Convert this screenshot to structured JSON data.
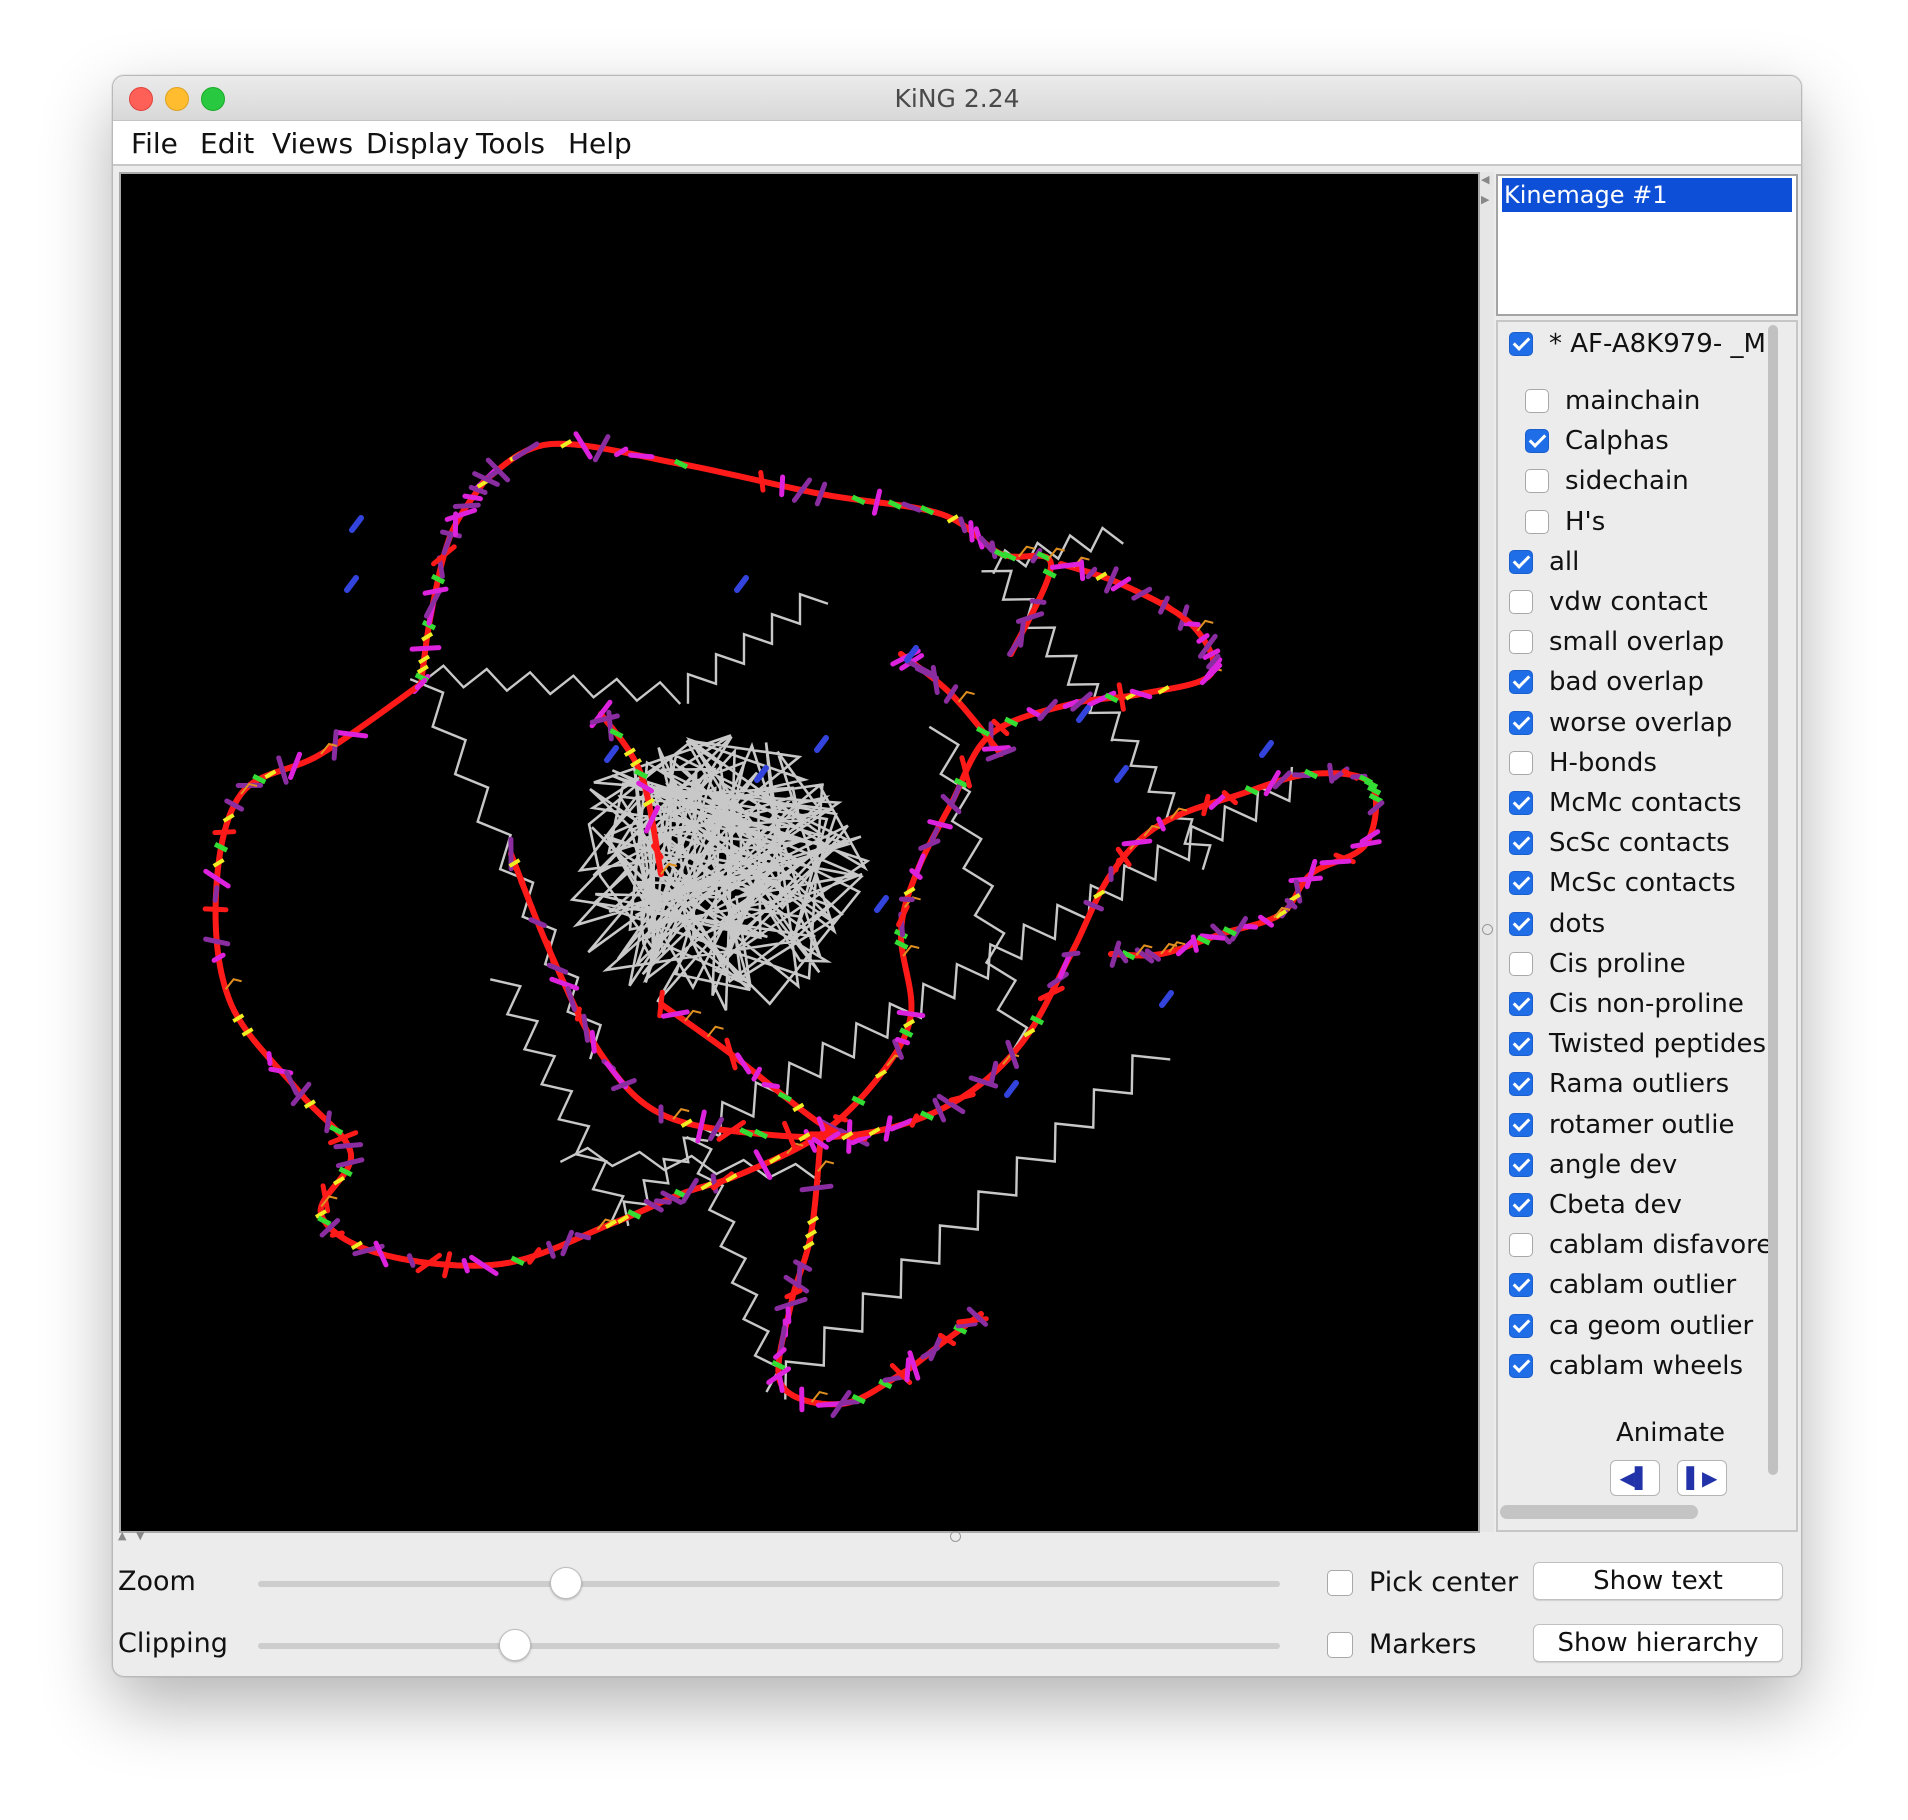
{
  "window": {
    "title": "KiNG 2.24"
  },
  "menu": [
    "File",
    "Edit",
    "Views",
    "Display",
    "Tools",
    "Help"
  ],
  "kinemage_list": {
    "selected": "Kinemage #1"
  },
  "groups": [
    {
      "label": "* AF-A8K979- _M",
      "checked": true,
      "level": 0
    },
    {
      "label": "mainchain",
      "checked": false,
      "level": 1
    },
    {
      "label": "Calphas",
      "checked": true,
      "level": 1
    },
    {
      "label": "sidechain",
      "checked": false,
      "level": 1
    },
    {
      "label": "H's",
      "checked": false,
      "level": 1
    },
    {
      "label": "all",
      "checked": true,
      "level": 0
    },
    {
      "label": "vdw contact",
      "checked": false,
      "level": 0
    },
    {
      "label": "small overlap",
      "checked": false,
      "level": 0
    },
    {
      "label": "bad overlap",
      "checked": true,
      "level": 0
    },
    {
      "label": "worse overlap",
      "checked": true,
      "level": 0
    },
    {
      "label": "H-bonds",
      "checked": false,
      "level": 0
    },
    {
      "label": "McMc contacts",
      "checked": true,
      "level": 0
    },
    {
      "label": "ScSc contacts",
      "checked": true,
      "level": 0
    },
    {
      "label": "McSc contacts",
      "checked": true,
      "level": 0
    },
    {
      "label": "dots",
      "checked": true,
      "level": 0
    },
    {
      "label": "Cis proline",
      "checked": false,
      "level": 0
    },
    {
      "label": "Cis non-proline",
      "checked": true,
      "level": 0
    },
    {
      "label": "Twisted peptides",
      "checked": true,
      "level": 0
    },
    {
      "label": "Rama outliers",
      "checked": true,
      "level": 0
    },
    {
      "label": "rotamer outlie",
      "checked": true,
      "level": 0
    },
    {
      "label": "angle dev",
      "checked": true,
      "level": 0
    },
    {
      "label": "Cbeta dev",
      "checked": true,
      "level": 0
    },
    {
      "label": "cablam disfavore",
      "checked": false,
      "level": 0
    },
    {
      "label": "cablam outlier",
      "checked": true,
      "level": 0
    },
    {
      "label": "ca geom outlier",
      "checked": true,
      "level": 0
    },
    {
      "label": "cablam wheels",
      "checked": true,
      "level": 0
    }
  ],
  "animate": {
    "label": "Animate",
    "prev_icon": "step-back-icon",
    "next_icon": "step-forward-icon"
  },
  "controls": {
    "zoom_label": "Zoom",
    "zoom_value": 0.3,
    "clipping_label": "Clipping",
    "clipping_value": 0.25,
    "pick_center_label": "Pick center",
    "pick_center_checked": false,
    "markers_label": "Markers",
    "markers_checked": false,
    "show_text_label": "Show text",
    "show_hierarchy_label": "Show hierarchy"
  },
  "colors": {
    "background": "#000000",
    "backbone": "#c8c8c8",
    "outlier_red": "#ff1a1a",
    "outlier_magenta": "#dd22dd",
    "outlier_purple": "#8a2da0",
    "sidechain_orange": "#e09020",
    "green": "#33dd33",
    "yellow": "#eeee22",
    "blue": "#3344dd",
    "selection_blue": "#0d4fd7"
  }
}
